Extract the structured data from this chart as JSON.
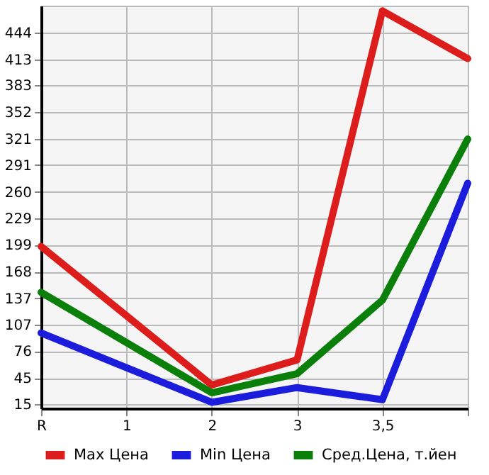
{
  "chart_data": {
    "type": "line",
    "categories": [
      "R",
      "1",
      "2",
      "3",
      "3,5",
      null
    ],
    "series": [
      {
        "name": "Max Цена",
        "color": "#dd1c1c",
        "values": [
          197,
          null,
          37,
          66,
          469,
          414
        ]
      },
      {
        "name": "Min Цена",
        "color": "#1c1cdd",
        "values": [
          97,
          null,
          17,
          34,
          20,
          270
        ]
      },
      {
        "name": "Сред.Цена, т.йен",
        "color": "#0a7f0a",
        "values": [
          144,
          null,
          28,
          50,
          135,
          321
        ]
      }
    ],
    "ylim": [
      10,
      475
    ],
    "yticks": [
      15,
      45,
      76,
      107,
      137,
      168,
      199,
      229,
      260,
      291,
      321,
      352,
      383,
      413,
      444
    ],
    "grid": true,
    "legend": "bottom",
    "marker": "none",
    "line_style": "solid"
  }
}
